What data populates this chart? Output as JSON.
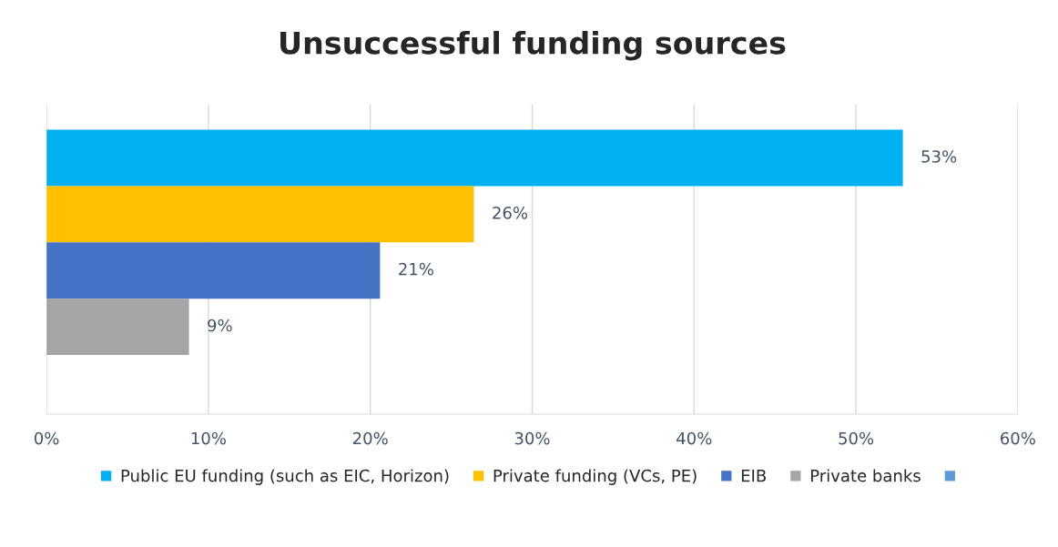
{
  "chart_data": {
    "type": "bar",
    "orientation": "horizontal",
    "title": "Unsuccessful funding sources",
    "categories": [
      null
    ],
    "series": [
      {
        "name": "Public EU funding (such as EIC, Horizon)",
        "color": "#00b0f0",
        "values": [
          52.9
        ],
        "value_labels": [
          "53%"
        ]
      },
      {
        "name": "Private funding (VCs, PE)",
        "color": "#ffc000",
        "values": [
          26.4
        ],
        "value_labels": [
          "26%"
        ]
      },
      {
        "name": "EIB",
        "color": "#4472c4",
        "values": [
          20.6
        ],
        "value_labels": [
          "21%"
        ]
      },
      {
        "name": "Private banks",
        "color": "#a5a5a5",
        "values": [
          8.8
        ],
        "value_labels": [
          "9%"
        ]
      },
      {
        "color": "#5b9bd5",
        "values": [
          null
        ]
      }
    ],
    "xlim": [
      0,
      60
    ],
    "xticks": [
      {
        "value": 0,
        "label": "0%"
      },
      {
        "value": 10,
        "label": "10%"
      },
      {
        "value": 20,
        "label": "20%"
      },
      {
        "value": 30,
        "label": "30%"
      },
      {
        "value": 40,
        "label": "40%"
      },
      {
        "value": 50,
        "label": "50%"
      },
      {
        "value": 60,
        "label": "60%"
      }
    ],
    "grid": "x",
    "legend": "bottom",
    "tick_labels": "x"
  }
}
